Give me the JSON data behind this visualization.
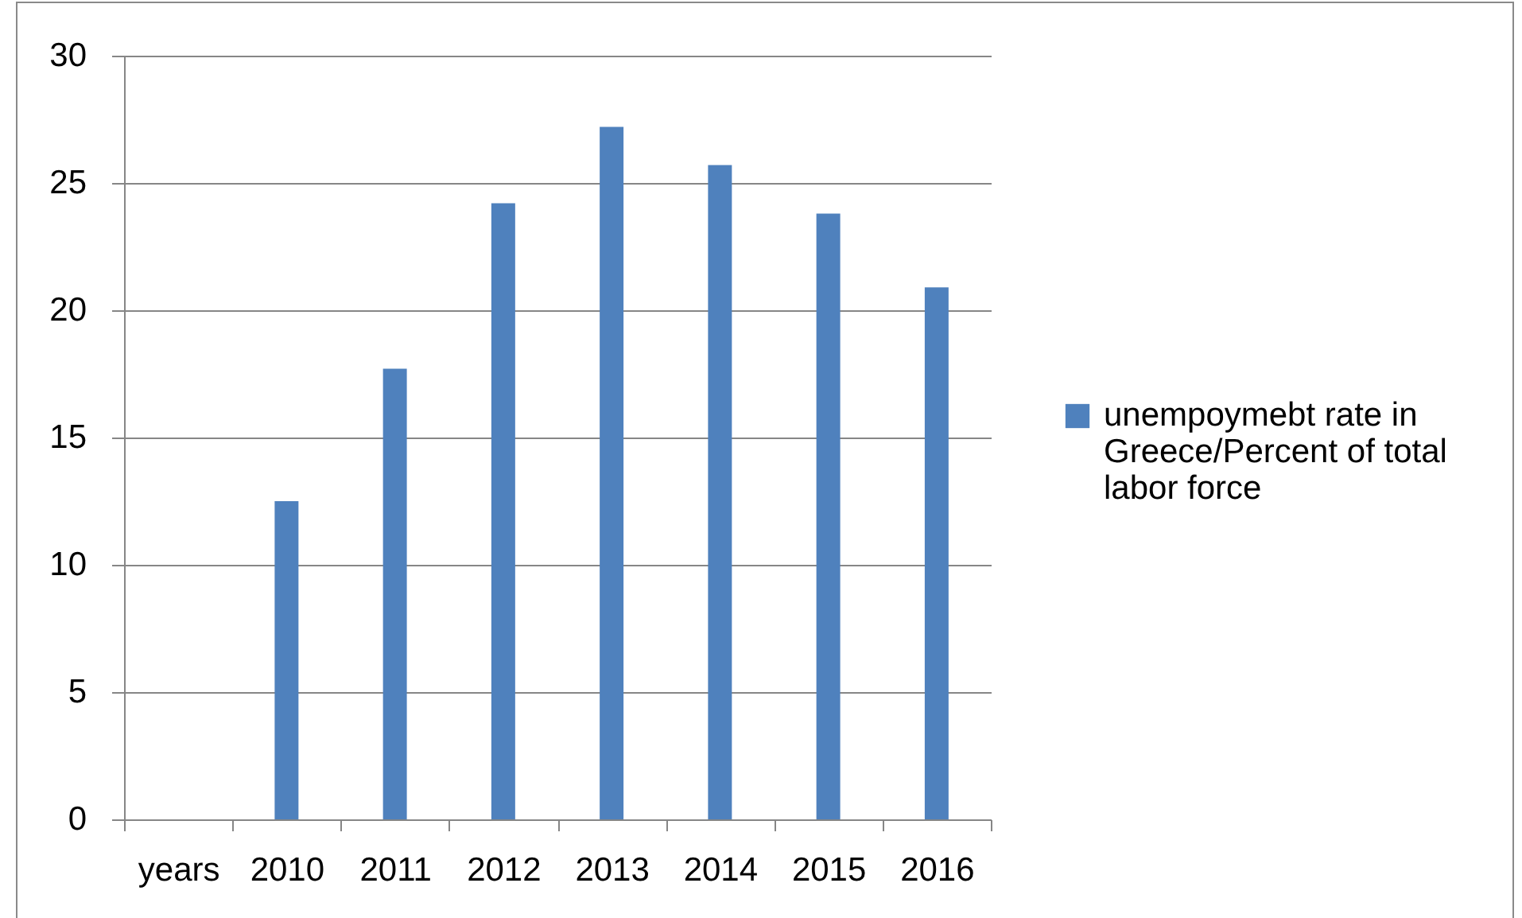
{
  "chart_data": {
    "type": "bar",
    "categories": [
      "years",
      "2010",
      "2011",
      "2012",
      "2013",
      "2014",
      "2015",
      "2016"
    ],
    "series": [
      {
        "name": "unempoymebt rate in Greece/Percent of total labor force",
        "color": "#4f81bd",
        "values": [
          null,
          12.5,
          17.7,
          24.2,
          27.2,
          25.7,
          23.8,
          20.9
        ]
      }
    ],
    "ylim": [
      0,
      30
    ],
    "yticks": [
      0,
      5,
      10,
      15,
      20,
      25,
      30
    ],
    "grid": "y",
    "legend": "right"
  }
}
